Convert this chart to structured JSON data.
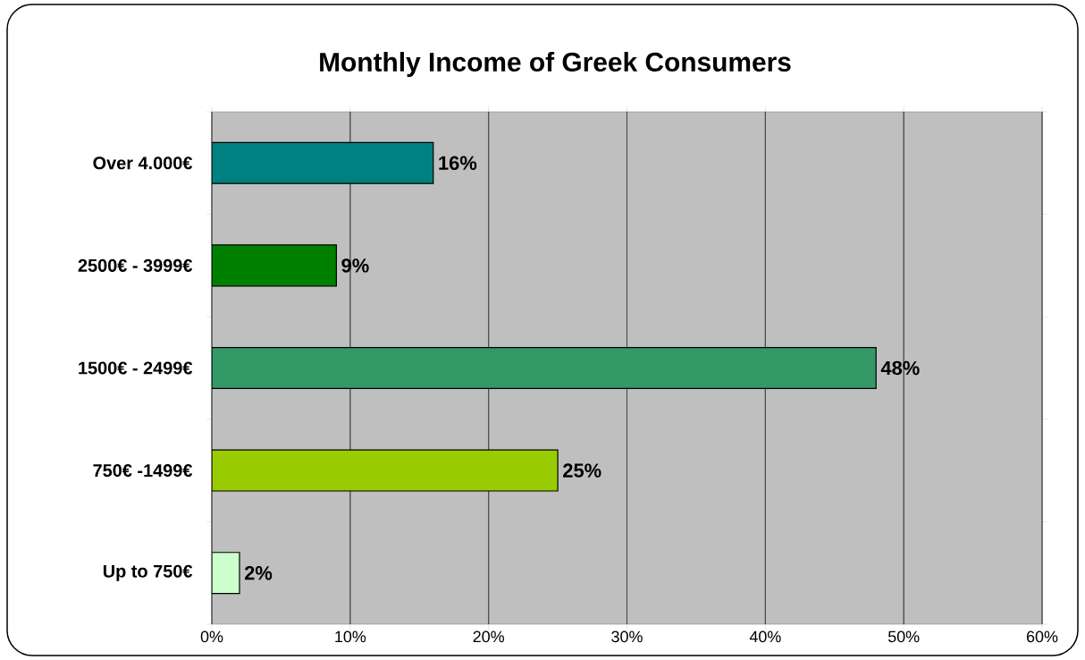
{
  "chart_data": {
    "type": "bar",
    "orientation": "horizontal",
    "title": "Monthly Income of Greek Consumers",
    "categories": [
      "Over 4.000€",
      "2500€ - 3999€",
      "1500€ - 2499€",
      "750€ -1499€",
      "Up to 750€"
    ],
    "values": [
      16,
      9,
      48,
      25,
      2
    ],
    "colors": [
      "#008080",
      "#008000",
      "#339966",
      "#99cc00",
      "#ccffcc"
    ],
    "value_labels": [
      "16%",
      "9%",
      "48%",
      "25%",
      "2%"
    ],
    "xlim": [
      0,
      60
    ],
    "xticks": [
      {
        "value": 0,
        "label": "0%"
      },
      {
        "value": 10,
        "label": "10%"
      },
      {
        "value": 20,
        "label": "20%"
      },
      {
        "value": 30,
        "label": "30%"
      },
      {
        "value": 40,
        "label": "40%"
      },
      {
        "value": 50,
        "label": "50%"
      },
      {
        "value": 60,
        "label": "60%"
      }
    ],
    "grid": "x"
  }
}
